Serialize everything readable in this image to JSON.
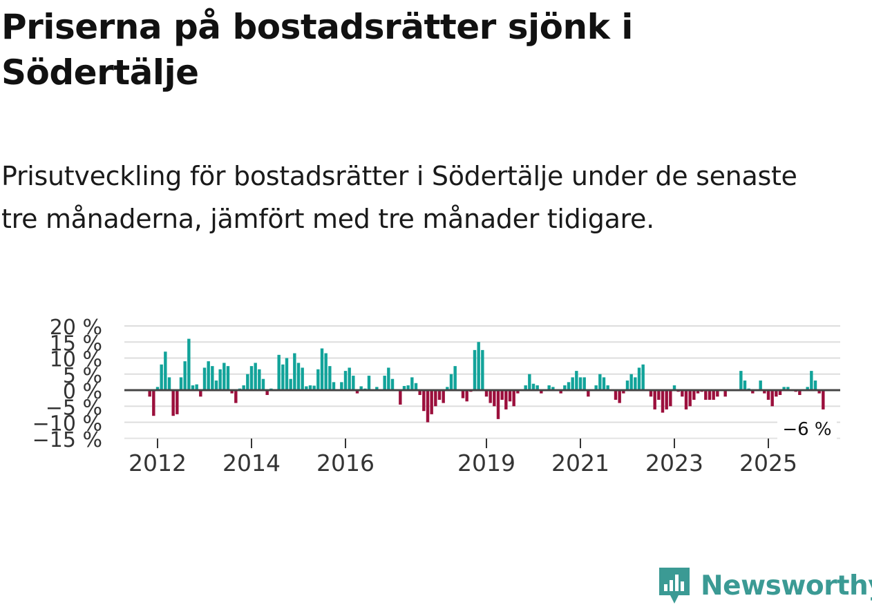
{
  "title": "Priserna på bostadsrätter sjönk i Södertälje",
  "subtitle": "Prisutveckling för bostadsrätter i Södertälje under de senaste tre månaderna, jämfört med tre månader tidigare.",
  "logo": {
    "text": "Newsworthy",
    "icon": "newsworthy-bar-chart-icon",
    "color": "#3b9a94"
  },
  "chart_data": {
    "type": "bar",
    "title": "",
    "xlabel": "",
    "ylabel": "",
    "ylim": [
      -15,
      20
    ],
    "unit": "%",
    "y_ticks": [
      {
        "value": 20,
        "label": "20 %"
      },
      {
        "value": 15,
        "label": "15 %"
      },
      {
        "value": 10,
        "label": "10 %"
      },
      {
        "value": 5,
        "label": "5 %"
      },
      {
        "value": 0,
        "label": "0 %"
      },
      {
        "value": -5,
        "label": "−5 %"
      },
      {
        "value": -10,
        "label": "−10 %"
      },
      {
        "value": -15,
        "label": "−15 %"
      }
    ],
    "x_ticks": [
      {
        "year": 2012,
        "label": "2012"
      },
      {
        "year": 2014,
        "label": "2014"
      },
      {
        "year": 2016,
        "label": "2016"
      },
      {
        "year": 2019,
        "label": "2019"
      },
      {
        "year": 2021,
        "label": "2021"
      },
      {
        "year": 2023,
        "label": "2023"
      },
      {
        "year": 2025,
        "label": "2025"
      }
    ],
    "start": {
      "year": 2011,
      "month": 11
    },
    "frequency": "monthly",
    "positive_color": "#12a39a",
    "negative_color": "#9b0f3c",
    "zero_line_color": "#444444",
    "grid": true,
    "annotation": {
      "label": "−6 %",
      "value": -6
    },
    "values": [
      -2,
      -8,
      1,
      8,
      12,
      4,
      -8,
      -7.5,
      4,
      9,
      16,
      1.5,
      1.8,
      -2,
      7,
      9,
      7.5,
      3,
      6.5,
      8.5,
      7.5,
      -1,
      -4,
      0.5,
      1.5,
      5,
      7.5,
      8.5,
      6.5,
      3.5,
      -1.5,
      0.5,
      0.2,
      11,
      8,
      10,
      3.5,
      11.5,
      8.5,
      7,
      1.2,
      1.5,
      1.4,
      6.5,
      13,
      11.5,
      7.5,
      2.5,
      0.3,
      2.5,
      6,
      7,
      4.5,
      -1,
      1.2,
      0.5,
      4.5,
      0.3,
      1,
      0.2,
      4.5,
      7,
      3.5,
      0.2,
      -4.5,
      1.3,
      1.5,
      4,
      2.2,
      -1.5,
      -6.5,
      -10,
      -7.5,
      -5,
      -3,
      -4,
      1,
      5,
      7.5,
      0.3,
      -2.5,
      -3.5,
      -0.5,
      12.5,
      15,
      12.5,
      -2,
      -4,
      -5,
      -9,
      -3,
      -6,
      -3.5,
      -5,
      -1,
      0.2,
      1.5,
      5,
      2,
      1.5,
      -1,
      0.3,
      1.5,
      1,
      0.3,
      -1,
      1.5,
      2.5,
      4,
      6,
      4,
      4,
      -2,
      0.3,
      1.5,
      5,
      4,
      1.5,
      0.2,
      -3,
      -4,
      -1,
      3,
      5,
      4,
      7,
      8,
      0.3,
      -2,
      -6,
      -3,
      -7,
      -6,
      -5,
      1.5,
      -0.5,
      -2,
      -6,
      -5,
      -3,
      -1,
      -0.5,
      -3,
      -3,
      -3,
      -2,
      0.3,
      -2,
      0.3,
      0.2,
      0.3,
      6,
      3,
      0.5,
      -1,
      0.2,
      3,
      -1,
      -3,
      -5,
      -2,
      -1.5,
      1,
      1,
      0.2,
      -0.5,
      -1.5,
      0.2,
      1,
      6,
      3,
      -1,
      -6
    ]
  }
}
